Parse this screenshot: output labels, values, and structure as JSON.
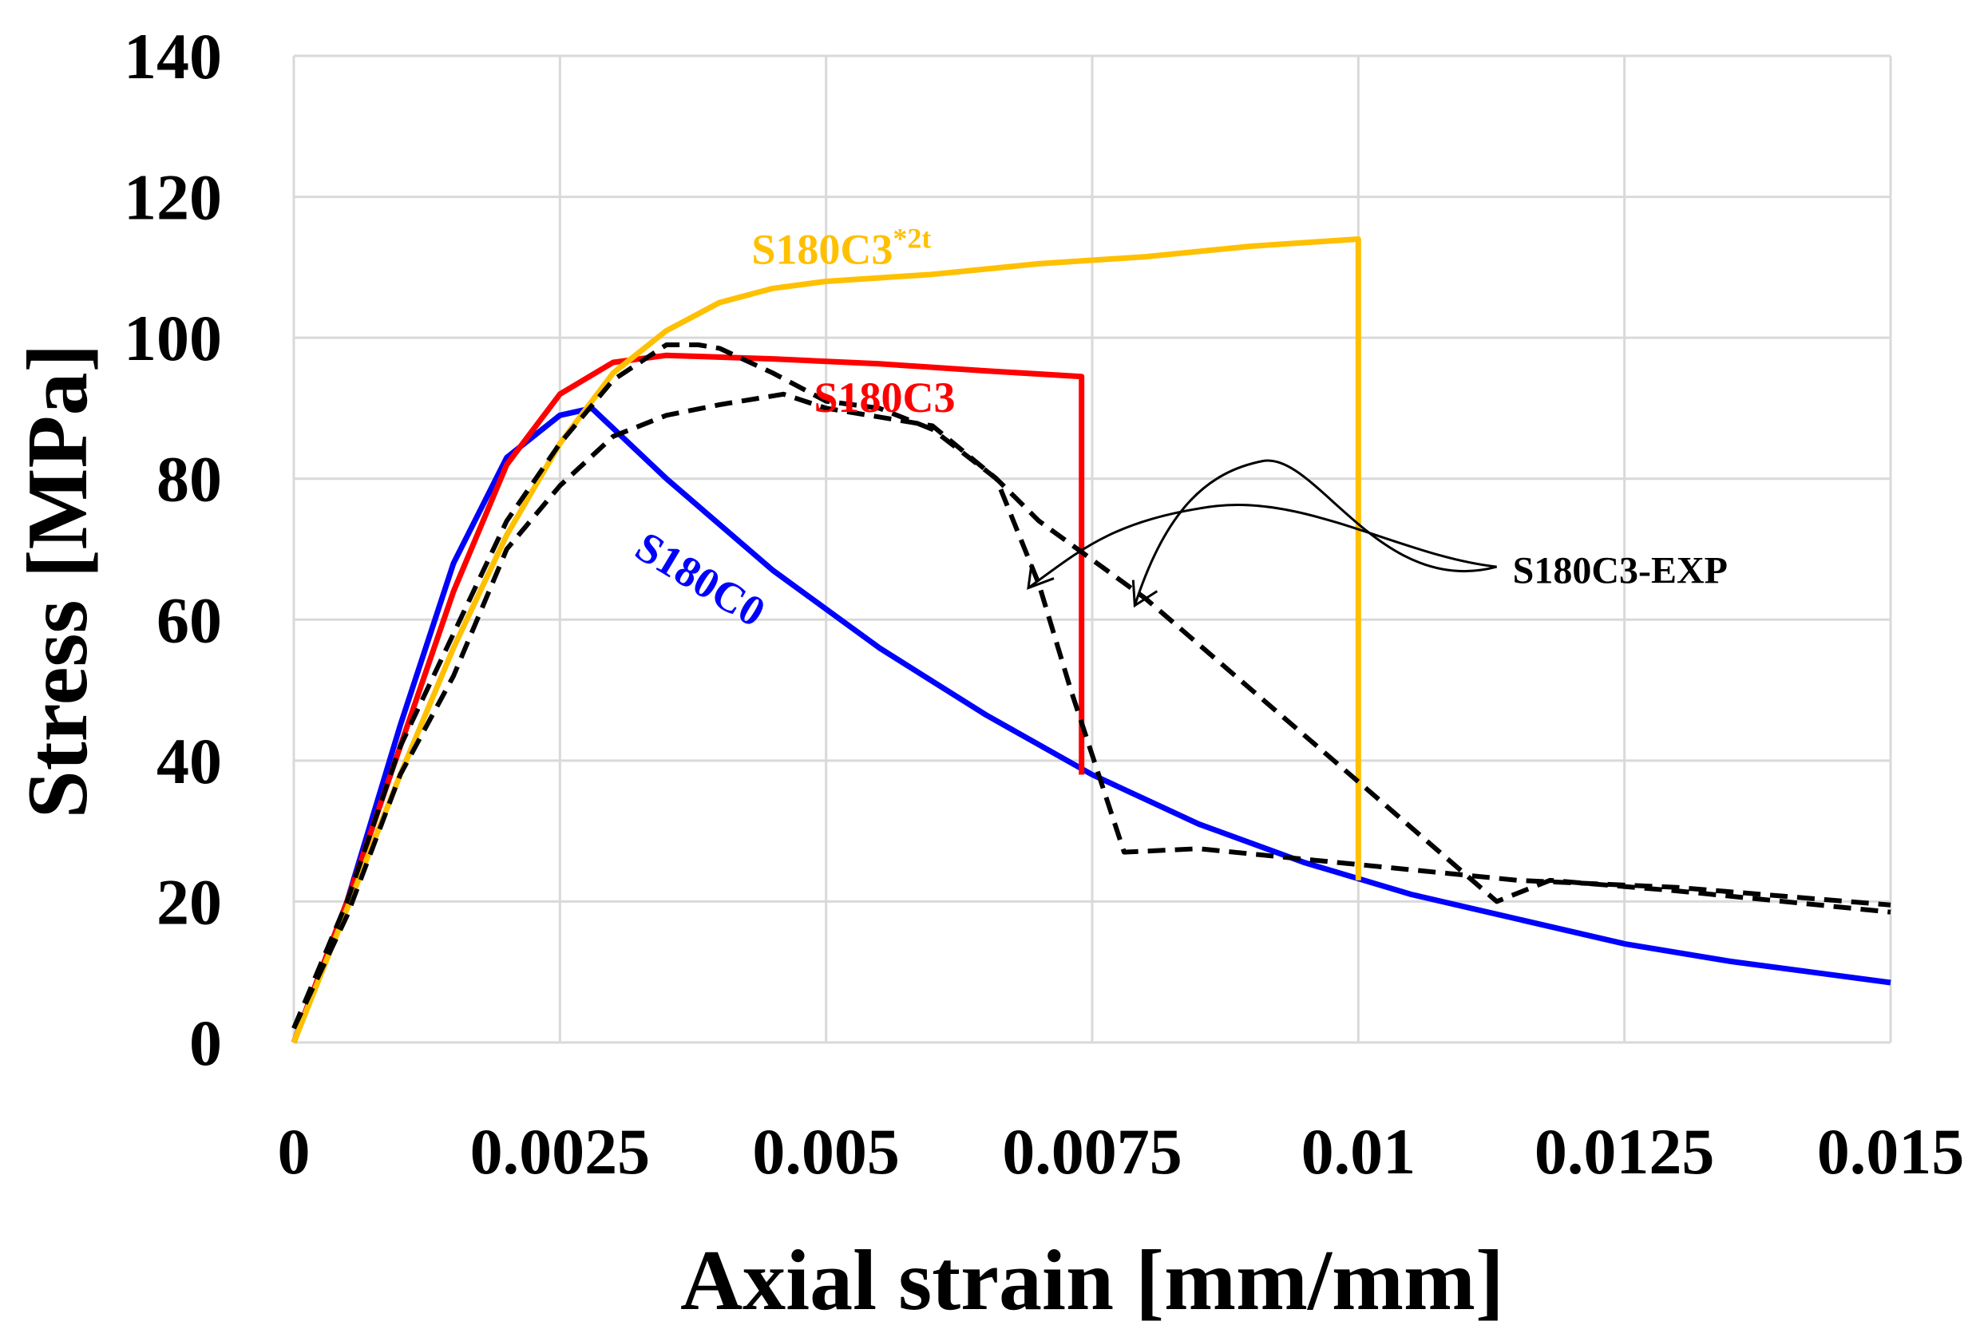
{
  "chart_data": {
    "type": "line",
    "xlabel": "Axial strain [mm/mm]",
    "ylabel": "Stress [MPa]",
    "xlim": [
      0,
      0.015
    ],
    "ylim": [
      0,
      140
    ],
    "grid": true,
    "xticks": [
      0,
      0.0025,
      0.005,
      0.0075,
      0.01,
      0.0125,
      0.015
    ],
    "xtick_labels": [
      "0",
      "0.0025",
      "0.005",
      "0.0075",
      "0.01",
      "0.0125",
      "0.015"
    ],
    "yticks": [
      0,
      20,
      40,
      60,
      80,
      100,
      120,
      140
    ],
    "ytick_labels": [
      "0",
      "20",
      "40",
      "60",
      "80",
      "100",
      "120",
      "140"
    ],
    "series": [
      {
        "name": "S180C0",
        "label_text": "S180C0",
        "color": "#0000ff",
        "style": "solid",
        "points": [
          [
            0,
            0
          ],
          [
            0.0005,
            20
          ],
          [
            0.001,
            45
          ],
          [
            0.0015,
            68
          ],
          [
            0.002,
            83
          ],
          [
            0.0025,
            89
          ],
          [
            0.0028,
            90
          ],
          [
            0.0035,
            80
          ],
          [
            0.0045,
            67
          ],
          [
            0.0055,
            56
          ],
          [
            0.0065,
            46.5
          ],
          [
            0.0075,
            38
          ],
          [
            0.0085,
            31
          ],
          [
            0.0095,
            25.5
          ],
          [
            0.0105,
            21
          ],
          [
            0.0115,
            17.5
          ],
          [
            0.0125,
            14
          ],
          [
            0.0135,
            11.5
          ],
          [
            0.015,
            8.5
          ]
        ]
      },
      {
        "name": "S180C3",
        "label_text": "S180C3",
        "color": "#ff0000",
        "style": "solid",
        "points": [
          [
            0,
            0
          ],
          [
            0.0005,
            20
          ],
          [
            0.001,
            42
          ],
          [
            0.0015,
            64
          ],
          [
            0.002,
            82
          ],
          [
            0.0025,
            92
          ],
          [
            0.003,
            96.5
          ],
          [
            0.0035,
            97.5
          ],
          [
            0.0045,
            97
          ],
          [
            0.0055,
            96.3
          ],
          [
            0.0065,
            95.3
          ],
          [
            0.0074,
            94.5
          ],
          [
            0.0074,
            38
          ]
        ]
      },
      {
        "name": "S180C3*2t",
        "label_text": "S180C3",
        "label_superscript": "*2t",
        "color": "#ffc000",
        "style": "solid",
        "points": [
          [
            0,
            0
          ],
          [
            0.0005,
            19
          ],
          [
            0.001,
            38
          ],
          [
            0.0015,
            56
          ],
          [
            0.002,
            72
          ],
          [
            0.0025,
            85
          ],
          [
            0.003,
            95
          ],
          [
            0.0035,
            101
          ],
          [
            0.004,
            105
          ],
          [
            0.0045,
            107
          ],
          [
            0.005,
            108
          ],
          [
            0.006,
            109
          ],
          [
            0.007,
            110.5
          ],
          [
            0.008,
            111.5
          ],
          [
            0.009,
            113
          ],
          [
            0.01,
            114
          ],
          [
            0.01,
            23
          ]
        ]
      },
      {
        "name": "S180C3-EXP curve 1",
        "color": "#000000",
        "style": "dashed",
        "points": [
          [
            0,
            2
          ],
          [
            0.0005,
            20
          ],
          [
            0.001,
            42
          ],
          [
            0.0015,
            58
          ],
          [
            0.002,
            74
          ],
          [
            0.0025,
            85
          ],
          [
            0.003,
            94
          ],
          [
            0.0035,
            99
          ],
          [
            0.0038,
            99
          ],
          [
            0.004,
            98.5
          ],
          [
            0.0045,
            95
          ],
          [
            0.005,
            91
          ],
          [
            0.0055,
            90
          ],
          [
            0.006,
            87
          ],
          [
            0.0066,
            80
          ],
          [
            0.007,
            65
          ],
          [
            0.0073,
            50
          ],
          [
            0.0078,
            27
          ],
          [
            0.0085,
            27.5
          ],
          [
            0.0095,
            26
          ],
          [
            0.0105,
            24.5
          ],
          [
            0.0115,
            23
          ],
          [
            0.013,
            22
          ],
          [
            0.015,
            19.5
          ]
        ]
      },
      {
        "name": "S180C3-EXP curve 2",
        "color": "#000000",
        "style": "dashed",
        "points": [
          [
            0,
            2
          ],
          [
            0.0005,
            18
          ],
          [
            0.001,
            38
          ],
          [
            0.0015,
            52
          ],
          [
            0.002,
            70
          ],
          [
            0.0025,
            79
          ],
          [
            0.003,
            86
          ],
          [
            0.0035,
            89
          ],
          [
            0.004,
            90.5
          ],
          [
            0.0046,
            92
          ],
          [
            0.005,
            90
          ],
          [
            0.006,
            87.5
          ],
          [
            0.0066,
            80
          ],
          [
            0.007,
            74
          ],
          [
            0.008,
            63
          ],
          [
            0.009,
            50
          ],
          [
            0.01,
            37
          ],
          [
            0.0113,
            20
          ],
          [
            0.0118,
            23
          ],
          [
            0.013,
            21.5
          ],
          [
            0.015,
            18.5
          ]
        ]
      }
    ],
    "annotations": [
      {
        "text": "S180C3-EXP",
        "at": [
          0.0115,
          67
        ],
        "arrows_to": [
          [
            0.0069,
            64.5
          ],
          [
            0.0079,
            62
          ]
        ]
      }
    ]
  }
}
